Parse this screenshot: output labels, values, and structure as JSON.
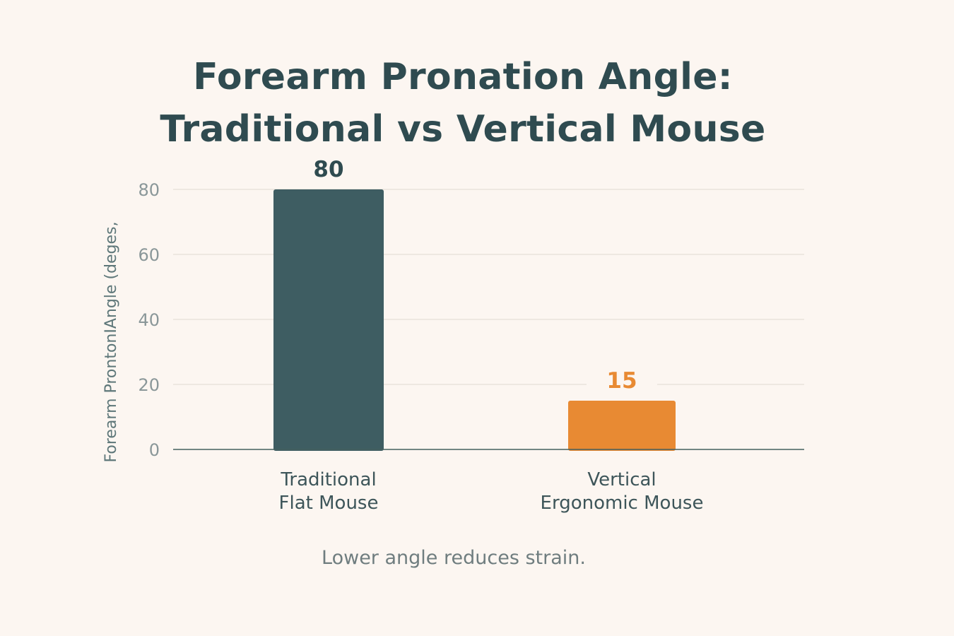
{
  "chart_data": {
    "type": "bar",
    "title_lines": [
      "Forearm Pronation Angle:",
      "Traditional vs Vertical Mouse"
    ],
    "ylabel": "Forearm ProntonIAngle (deges,",
    "xlabel": "",
    "categories": [
      [
        "Traditional",
        "Flat Mouse"
      ],
      [
        "Vertical",
        "Ergonomic Mouse"
      ]
    ],
    "values": [
      80,
      15
    ],
    "value_labels": [
      "80",
      "15"
    ],
    "yticks": [
      "0",
      "20",
      "40",
      "60",
      "80"
    ],
    "ylim": [
      0,
      80
    ],
    "grid": true,
    "bar_colors": [
      "#3e5d62",
      "#e88a33"
    ],
    "value_label_colors": [
      "#2f4b50",
      "#e88a33"
    ]
  },
  "footnote": "Lower angle reduces strain."
}
